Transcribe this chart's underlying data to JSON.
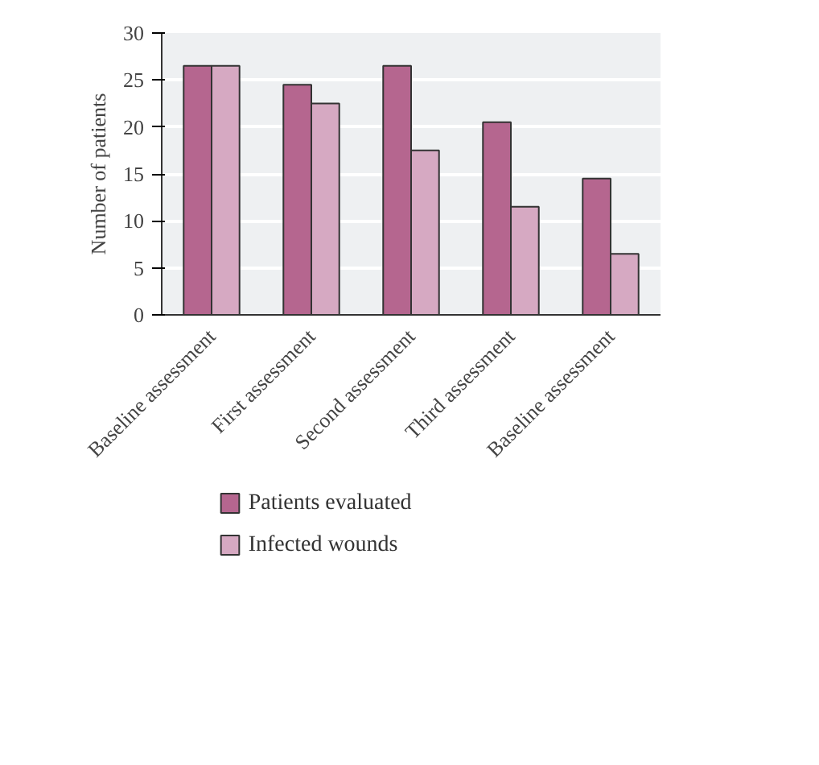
{
  "chart_data": {
    "type": "bar",
    "ylabel": "Number of patients",
    "categories": [
      "Baseline assessment",
      "First assessment",
      "Second assessment",
      "Third assessment",
      "Baseline assessment"
    ],
    "series": [
      {
        "name": "Patients evaluated",
        "color": "#b5668f",
        "values": [
          26.5,
          24.5,
          26.5,
          20.5,
          14.5
        ]
      },
      {
        "name": "Infected wounds",
        "color": "#d6a9c2",
        "values": [
          26.5,
          22.5,
          17.5,
          11.5,
          6.5
        ]
      }
    ],
    "ylim": [
      0,
      30
    ],
    "yticks": [
      0,
      5,
      10,
      15,
      20,
      25,
      30
    ],
    "grid": "y",
    "legend": "bottom"
  }
}
